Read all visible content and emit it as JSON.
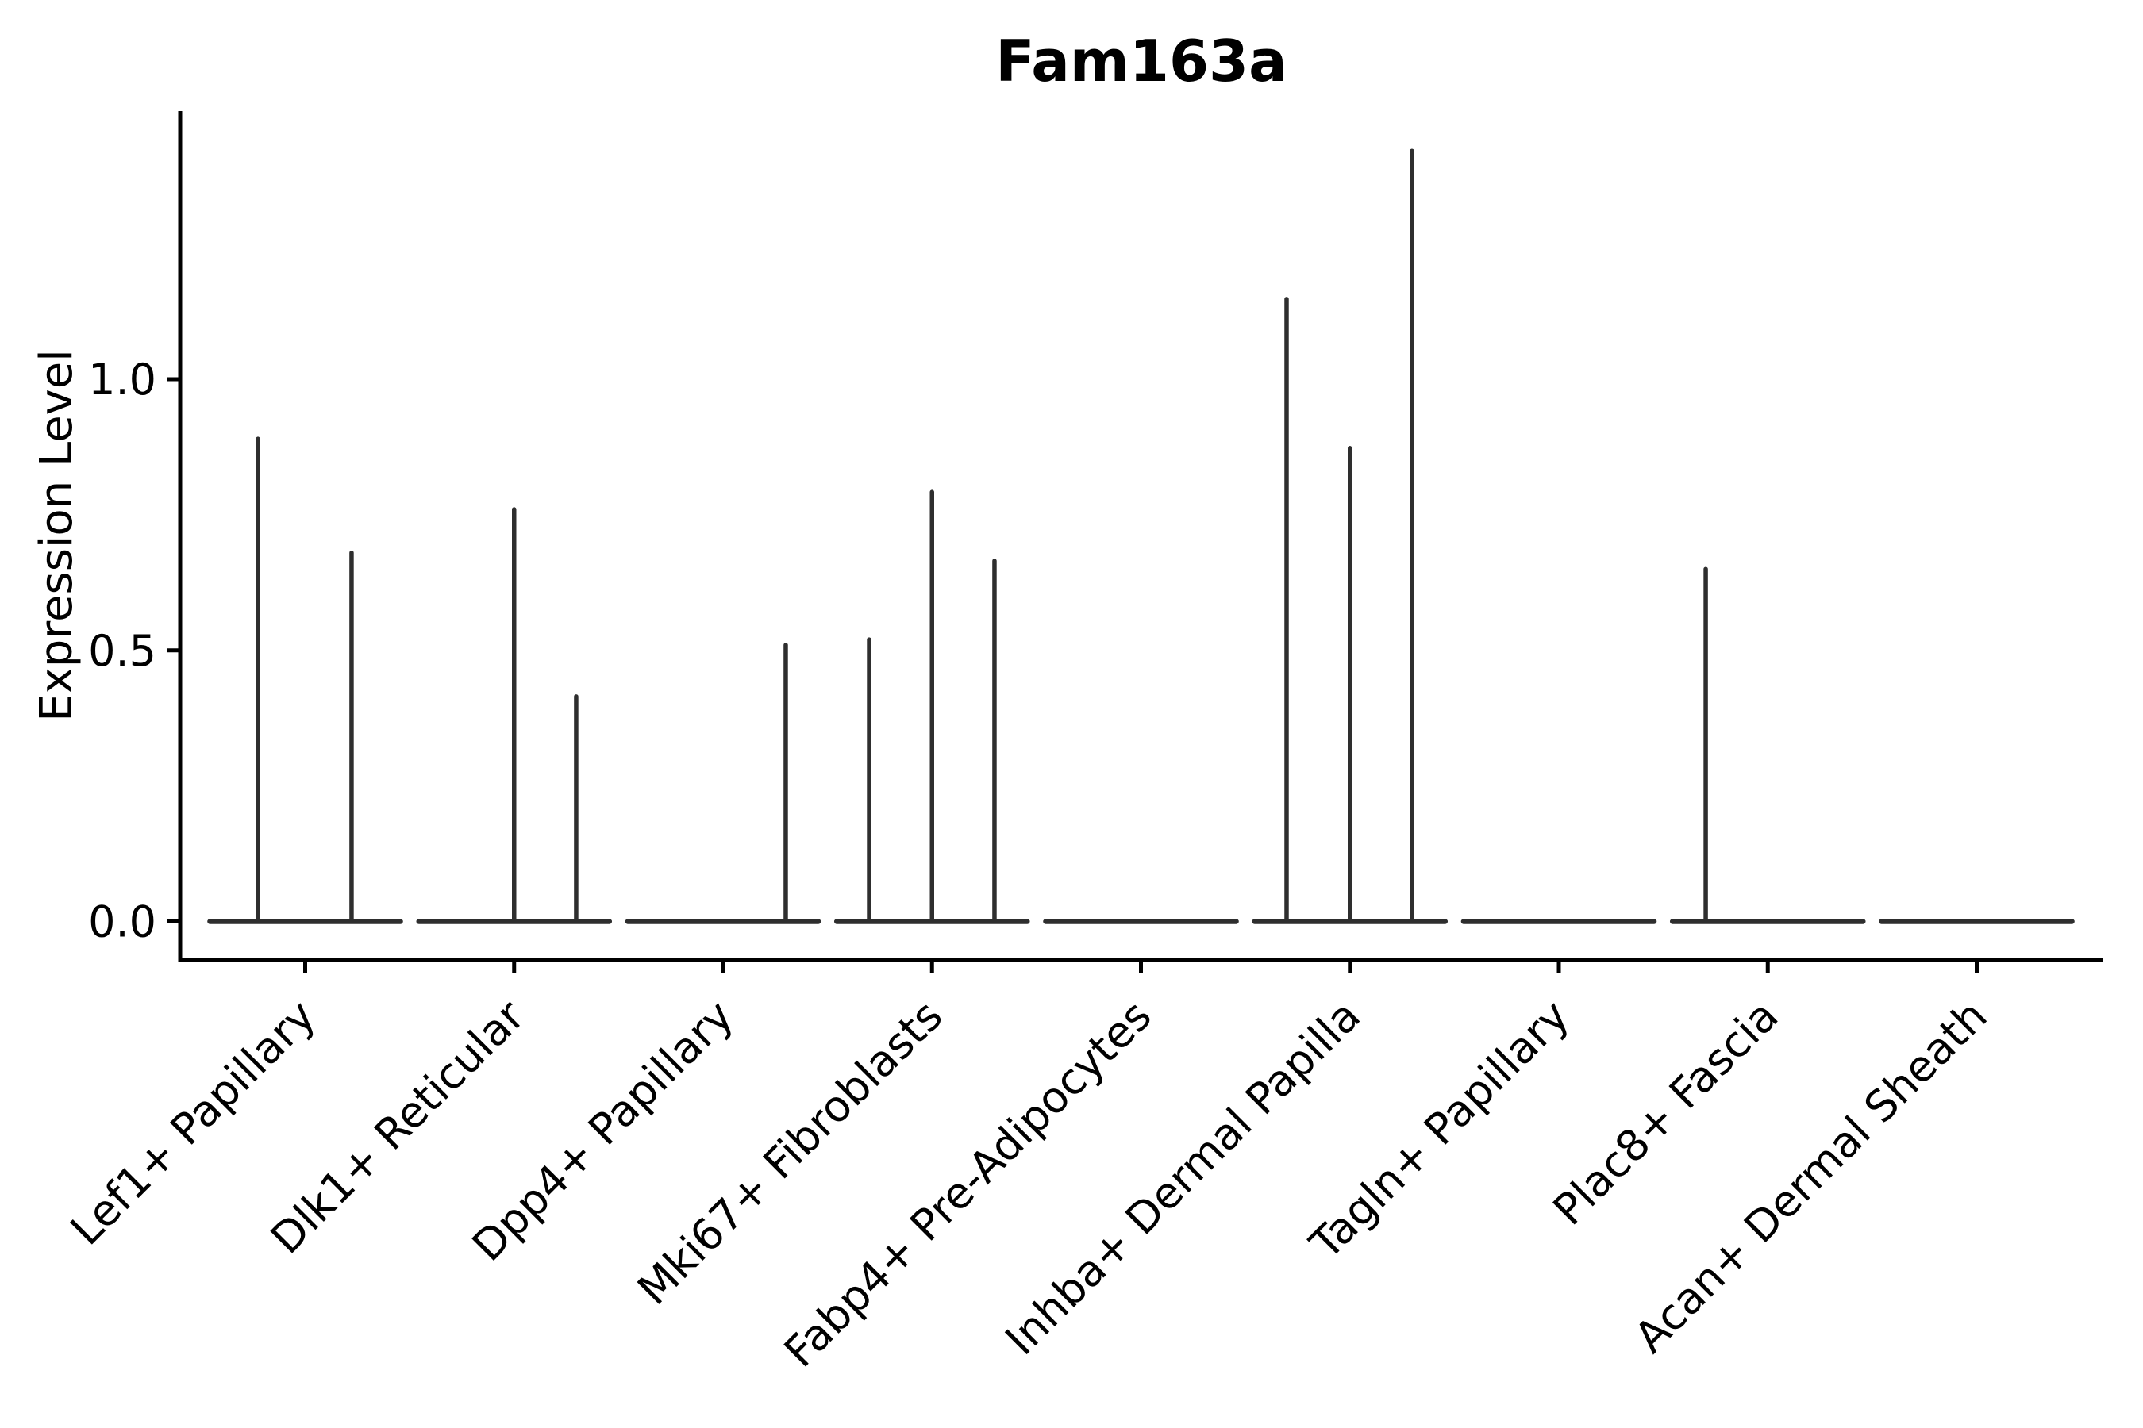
{
  "chart_data": {
    "type": "violin",
    "title": "Fam163a",
    "xlabel": "",
    "ylabel": "Expression Level",
    "legend": "none",
    "grid": false,
    "background_color": "#ffffff",
    "spine_color": "#000000",
    "violin_color": "#2e2e2e",
    "ylim": [
      -0.07,
      1.49
    ],
    "yticks": [
      {
        "value": 0.0,
        "label": "0.0"
      },
      {
        "value": 0.5,
        "label": "0.5"
      },
      {
        "value": 1.0,
        "label": "1.0"
      }
    ],
    "categories": [
      "Lef1+ Papillary",
      "Dlk1+ Reticular",
      "Dpp4+ Papillary",
      "Mki67+ Fibroblasts",
      "Fabp4+ Pre-Adipocytes",
      "Inhba+ Dermal Papilla",
      "Tagln+ Papillary",
      "Plac8+ Fascia",
      "Acan+ Dermal Sheath"
    ],
    "violins": [
      {
        "category": "Lef1+ Papillary",
        "baseline_value": 0.0,
        "baseline_halfwidth": 0.456,
        "spikes": [
          {
            "offset": -0.226,
            "value": 0.89
          },
          {
            "offset": 0.222,
            "value": 0.68
          }
        ]
      },
      {
        "category": "Dlk1+ Reticular",
        "baseline_value": 0.0,
        "baseline_halfwidth": 0.456,
        "spikes": [
          {
            "offset": 0.0,
            "value": 0.76
          },
          {
            "offset": 0.297,
            "value": 0.415
          }
        ]
      },
      {
        "category": "Dpp4+ Papillary",
        "baseline_value": 0.0,
        "baseline_halfwidth": 0.456,
        "spikes": [
          {
            "offset": 0.3,
            "value": 0.51
          }
        ]
      },
      {
        "category": "Mki67+ Fibroblasts",
        "baseline_value": 0.0,
        "baseline_halfwidth": 0.456,
        "spikes": [
          {
            "offset": -0.301,
            "value": 0.52
          },
          {
            "offset": 0.0,
            "value": 0.792
          },
          {
            "offset": 0.299,
            "value": 0.665
          }
        ]
      },
      {
        "category": "Fabp4+ Pre-Adipocytes",
        "baseline_value": 0.0,
        "baseline_halfwidth": 0.456,
        "spikes": []
      },
      {
        "category": "Inhba+ Dermal Papilla",
        "baseline_value": 0.0,
        "baseline_halfwidth": 0.456,
        "spikes": [
          {
            "offset": -0.303,
            "value": 1.148
          },
          {
            "offset": 0.0,
            "value": 0.873
          },
          {
            "offset": 0.297,
            "value": 1.421
          }
        ]
      },
      {
        "category": "Tagln+ Papillary",
        "baseline_value": 0.0,
        "baseline_halfwidth": 0.456,
        "spikes": []
      },
      {
        "category": "Plac8+ Fascia",
        "baseline_value": 0.0,
        "baseline_halfwidth": 0.456,
        "spikes": [
          {
            "offset": -0.297,
            "value": 0.65
          }
        ]
      },
      {
        "category": "Acan+ Dermal Sheath",
        "baseline_value": 0.0,
        "baseline_halfwidth": 0.456,
        "spikes": []
      }
    ]
  }
}
